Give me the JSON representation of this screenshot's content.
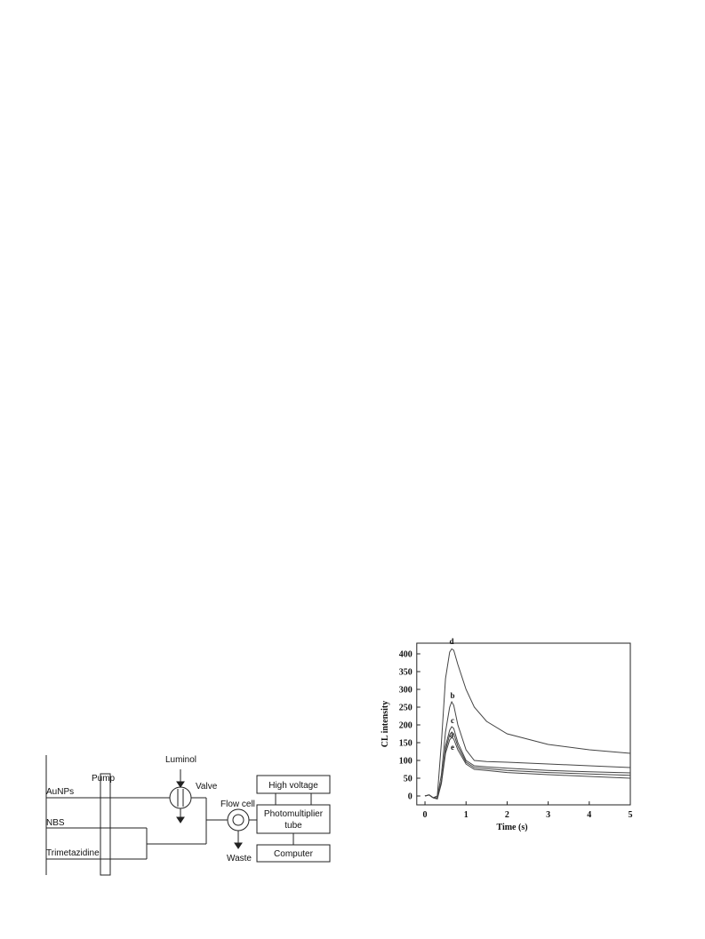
{
  "diagram": {
    "labels": {
      "pump": "Pump",
      "luminol": "Luminol",
      "valve": "Valve",
      "aunps": "AuNPs",
      "nbs": "NBS",
      "trimetazidine": "Trimetazidine",
      "flow_cell": "Flow cell",
      "waste": "Waste",
      "high_voltage": "High voltage",
      "pmt_line1": "Photomultiplier",
      "pmt_line2": "tube",
      "computer": "Computer"
    }
  },
  "chart_data": {
    "type": "line",
    "x_label": "Time (s)",
    "y_label": "CL intensity",
    "x": [
      0,
      0.1,
      0.2,
      0.3,
      0.4,
      0.5,
      0.6,
      0.65,
      0.7,
      0.8,
      1.0,
      1.2,
      1.5,
      2,
      3,
      4,
      5
    ],
    "series": [
      {
        "name": "d",
        "color": "#444444",
        "values": [
          0,
          3,
          -5,
          0,
          150,
          330,
          405,
          414,
          410,
          370,
          300,
          250,
          210,
          175,
          145,
          130,
          120
        ]
      },
      {
        "name": "b",
        "color": "#444444",
        "values": [
          0,
          3,
          -5,
          -5,
          60,
          180,
          250,
          265,
          255,
          200,
          130,
          100,
          97,
          95,
          90,
          85,
          80
        ]
      },
      {
        "name": "c",
        "color": "#444444",
        "values": [
          0,
          3,
          -5,
          -8,
          40,
          140,
          185,
          195,
          190,
          150,
          100,
          85,
          82,
          78,
          72,
          68,
          65
        ]
      },
      {
        "name": "a",
        "color": "#444444",
        "values": [
          0,
          3,
          -5,
          -8,
          40,
          130,
          172,
          180,
          175,
          140,
          95,
          80,
          77,
          72,
          66,
          62,
          58
        ]
      },
      {
        "name": "e",
        "color": "#444444",
        "values": [
          0,
          3,
          -5,
          -8,
          35,
          120,
          158,
          165,
          160,
          130,
          90,
          75,
          72,
          66,
          60,
          55,
          50
        ]
      }
    ],
    "xlim": [
      -0.2,
      5
    ],
    "ylim": [
      -25,
      430
    ],
    "xticks": [
      0,
      1,
      2,
      3,
      4,
      5
    ],
    "yticks": [
      0,
      50,
      100,
      150,
      200,
      250,
      300,
      350,
      400
    ]
  }
}
